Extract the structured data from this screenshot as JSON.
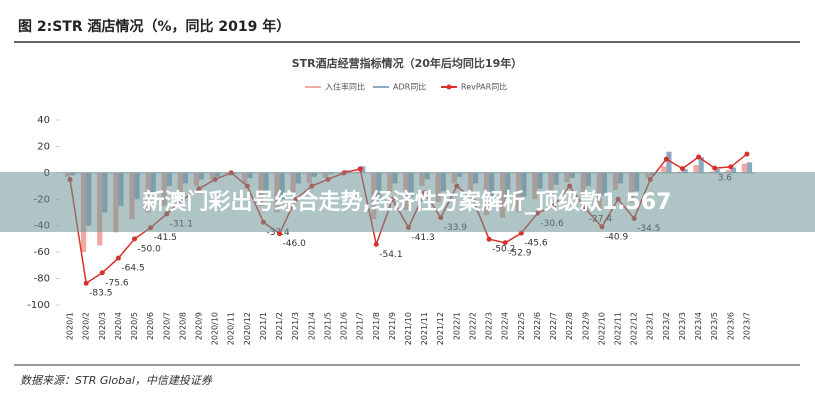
{
  "header": {
    "title": "图 2:STR 酒店情况（%，同比 2019 年）"
  },
  "chart_data": {
    "type": "bar-line",
    "title": "STR酒店经营指标情况（20年后均同比19年）",
    "categories": [
      "2020/1",
      "2020/2",
      "2020/3",
      "2020/4",
      "2020/5",
      "2020/6",
      "2020/7",
      "2020/8",
      "2020/9",
      "2020/10",
      "2020/11",
      "2020/12",
      "2021/1",
      "2021/2",
      "2021/3",
      "2021/4",
      "2021/5",
      "2021/6",
      "2021/7",
      "2021/8",
      "2021/9",
      "2021/10",
      "2021/11",
      "2021/12",
      "2022/1",
      "2022/2",
      "2022/3",
      "2022/4",
      "2022/5",
      "2022/6",
      "2022/7",
      "2022/8",
      "2022/9",
      "2022/10",
      "2022/11",
      "2022/12",
      "2023/1",
      "2023/2",
      "2023/3",
      "2023/4",
      "2023/5",
      "2023/6",
      "2023/7"
    ],
    "series": [
      {
        "name": "入住率同比",
        "kind": "bar",
        "color": "#f0a8a0",
        "values": [
          -3,
          -60,
          -55,
          -45,
          -35,
          -30,
          -25,
          -15,
          -10,
          -5,
          -2,
          -8,
          -25,
          -30,
          -15,
          -8,
          -4,
          -2,
          1,
          -35,
          -15,
          -28,
          -10,
          -22,
          -8,
          -15,
          -32,
          -34,
          -30,
          -20,
          -17,
          -7,
          -18,
          -27,
          -13,
          -22,
          -4,
          5,
          1,
          6,
          1,
          2,
          7
        ]
      },
      {
        "name": "ADR同比",
        "kind": "bar",
        "color": "#8da9c4",
        "values": [
          -2,
          -40,
          -30,
          -25,
          -20,
          -15,
          -10,
          -8,
          -5,
          -3,
          -1,
          -4,
          -15,
          -20,
          -8,
          -3,
          -1,
          2,
          5,
          -22,
          -8,
          -18,
          -5,
          -14,
          -3,
          -8,
          -20,
          -22,
          -18,
          -12,
          -9,
          -4,
          -10,
          -17,
          -8,
          -14,
          -2,
          16,
          3,
          12,
          3,
          4,
          8
        ]
      },
      {
        "name": "RevPAR同比",
        "kind": "line",
        "color": "#d9302c",
        "values": [
          -5,
          -83.5,
          -75.6,
          -64.5,
          -50.0,
          -41.5,
          -31.1,
          -20,
          -12,
          -5,
          0,
          -10,
          -37.4,
          -46.0,
          -20,
          -10,
          -5,
          0,
          3,
          -54.1,
          -20,
          -41.3,
          -15,
          -33.9,
          -10,
          -20,
          -50.2,
          -52.9,
          -45.6,
          -30.6,
          -25,
          -10,
          -27.4,
          -40.9,
          -20,
          -34.5,
          -5,
          10.4,
          3.2,
          12.0,
          3.6,
          4.5,
          14.2
        ],
        "value_labels": [
          null,
          "-83.5",
          "-75.6",
          "-64.5",
          "-50.0",
          "-41.5",
          "-31.1",
          null,
          null,
          null,
          null,
          null,
          "-37.4",
          "-46.0",
          null,
          null,
          null,
          null,
          null,
          "-54.1",
          null,
          "-41.3",
          null,
          "-33.9",
          null,
          null,
          "-50.2",
          "-52.9",
          "-45.6",
          "-30.6",
          null,
          null,
          "-27.4",
          "-40.9",
          null,
          "-34.5",
          null,
          null,
          null,
          null,
          "3.6",
          null,
          null
        ]
      }
    ],
    "ylim": [
      -100,
      40
    ],
    "yticks": [
      -100,
      -80,
      -60,
      -40,
      -20,
      0,
      20,
      40
    ],
    "grid": false
  },
  "banner": {
    "text": "新澳门彩出号综合走势,经济性方案解析_顶级款1.567"
  },
  "source": {
    "text": "数据来源：STR Global，中信建投证券"
  }
}
